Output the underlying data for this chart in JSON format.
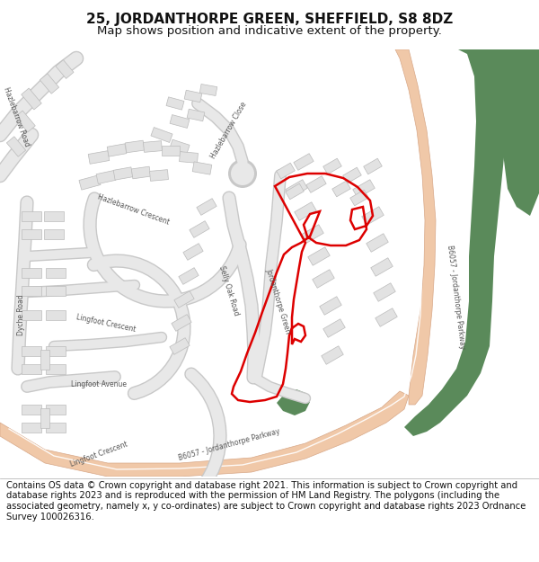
{
  "title": "25, JORDANTHORPE GREEN, SHEFFIELD, S8 8DZ",
  "subtitle": "Map shows position and indicative extent of the property.",
  "footer": "Contains OS data © Crown copyright and database right 2021. This information is subject to Crown copyright and database rights 2023 and is reproduced with the permission of HM Land Registry. The polygons (including the associated geometry, namely x, y co-ordinates) are subject to Crown copyright and database rights 2023 Ordnance Survey 100026316.",
  "map_bg": "#f8f8f8",
  "road_fill": "#e8e8e8",
  "road_edge": "#c8c8c8",
  "green_color": "#5a8a5a",
  "parkway_fill": "#f0c8a8",
  "parkway_edge": "#d8a888",
  "building_fill": "#e2e2e2",
  "building_edge": "#bbbbbb",
  "red_color": "#dd0000",
  "white_line": "#ffffff",
  "title_fontsize": 11,
  "subtitle_fontsize": 9.5,
  "footer_fontsize": 7.2,
  "label_fontsize": 5.5,
  "label_color": "#555555"
}
